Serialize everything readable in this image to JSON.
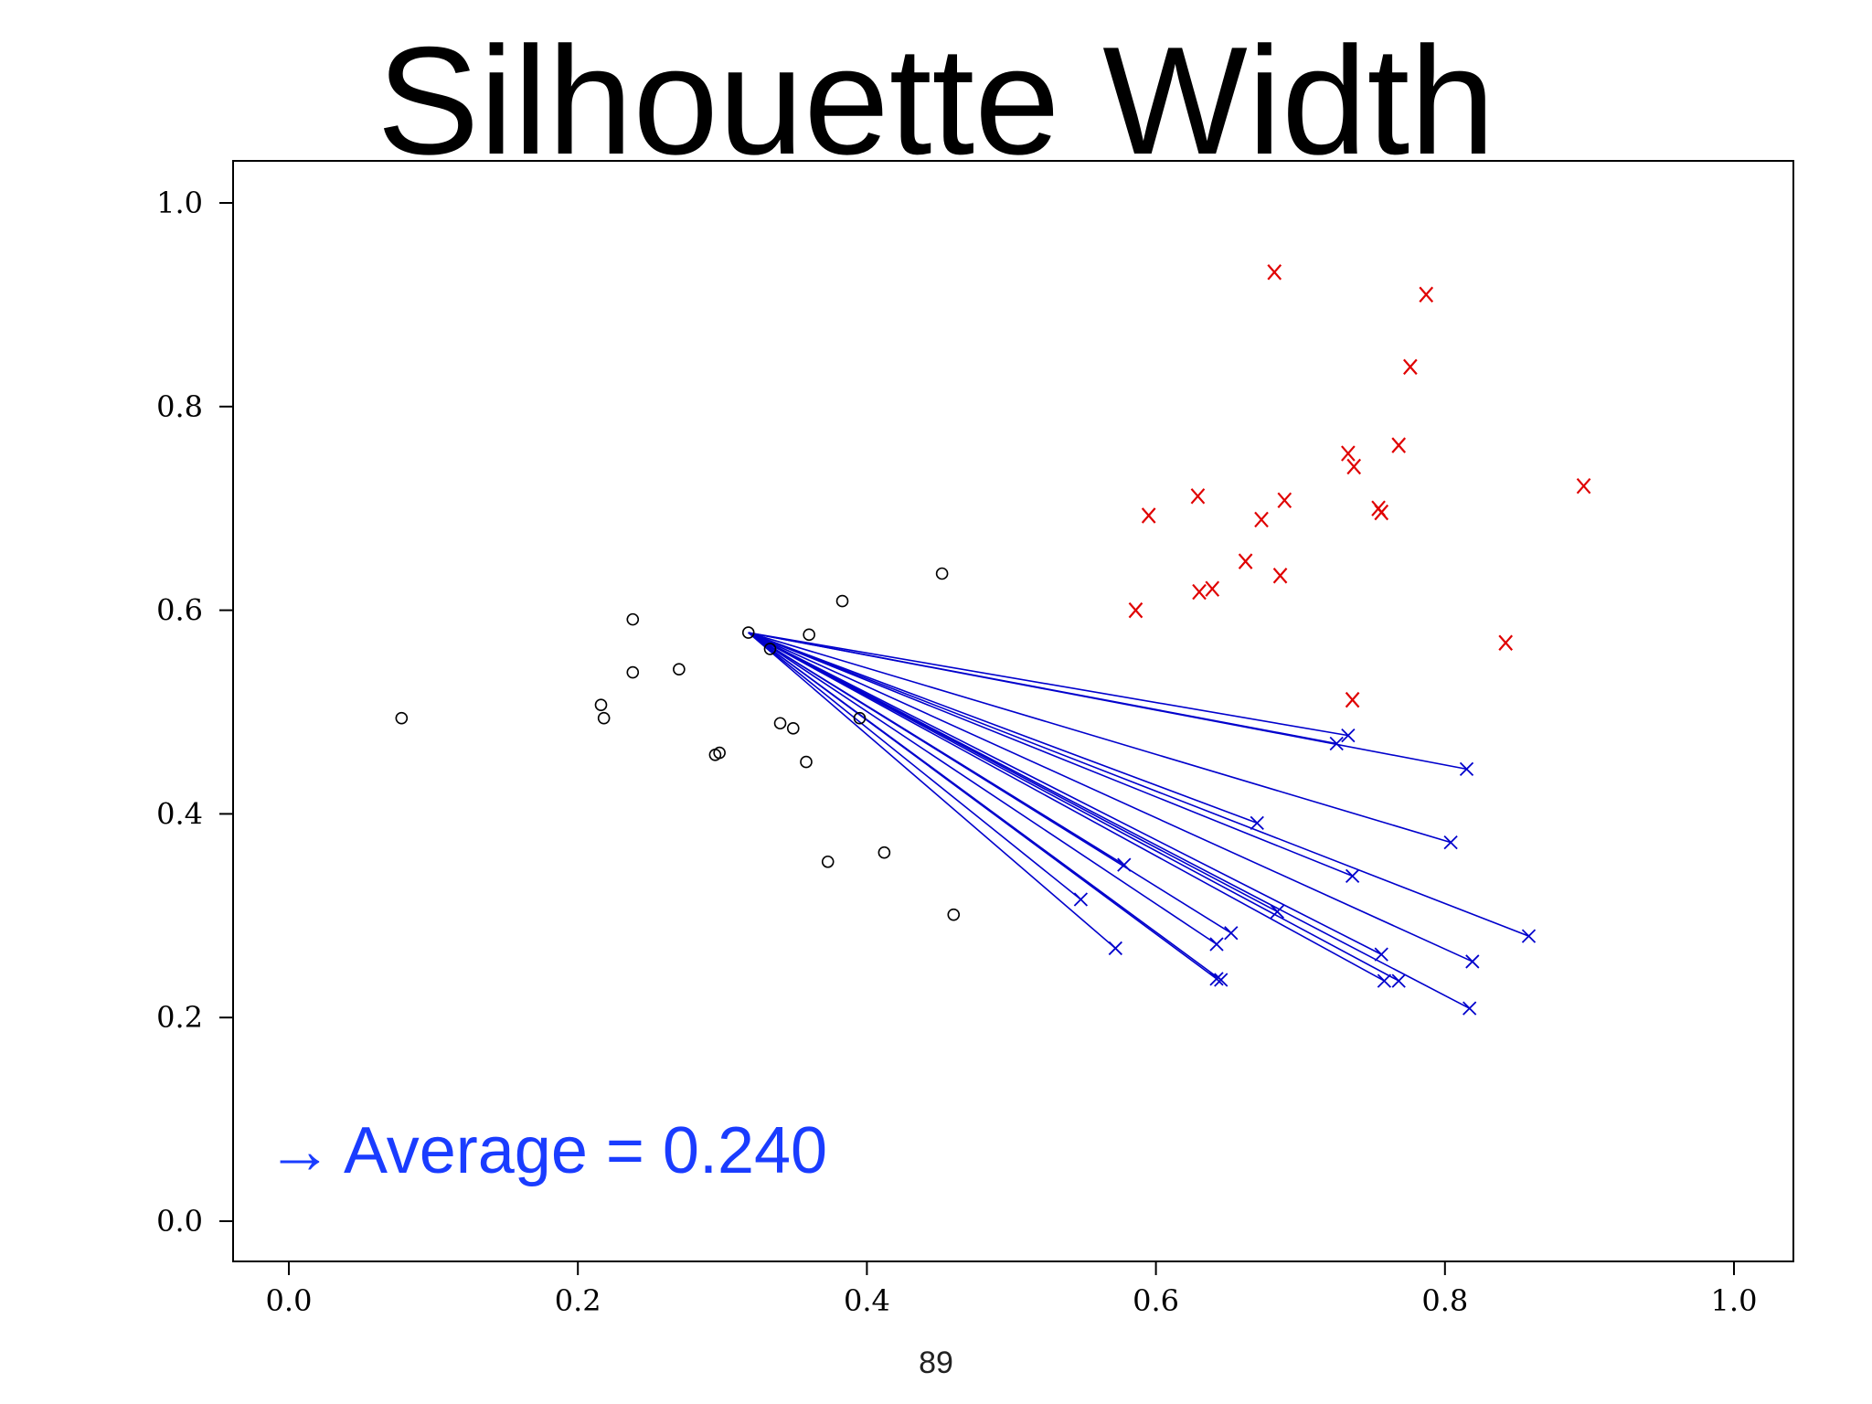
{
  "slide": {
    "title": "Silhouette Width",
    "page_number": "89"
  },
  "chart_data": {
    "type": "scatter",
    "title": "",
    "xlabel": "",
    "ylabel": "",
    "xlim": [
      0.0,
      1.0
    ],
    "ylim": [
      0.0,
      1.0
    ],
    "grid": false,
    "x_ticks": [
      "0.0",
      "0.2",
      "0.4",
      "0.6",
      "0.8",
      "1.0"
    ],
    "y_ticks": [
      "0.0",
      "0.2",
      "0.4",
      "0.6",
      "0.8",
      "1.0"
    ],
    "x_tick_values": [
      0.0,
      0.2,
      0.4,
      0.6,
      0.8,
      1.0
    ],
    "y_tick_values": [
      0.0,
      0.2,
      0.4,
      0.6,
      0.8,
      1.0
    ],
    "reference_point": {
      "x": 0.318,
      "y": 0.578
    },
    "annotation": {
      "arrow": "→",
      "text": "Average = 0.240",
      "color": "#1a3cff"
    },
    "colors": {
      "circles": "#000000",
      "red_x": "#e00000",
      "blue_x": "#0000cc",
      "lines": "#0000cc"
    },
    "series": [
      {
        "marker": "circle",
        "color": "#000000",
        "points": [
          [
            0.078,
            0.494
          ],
          [
            0.216,
            0.507
          ],
          [
            0.218,
            0.494
          ],
          [
            0.238,
            0.591
          ],
          [
            0.238,
            0.539
          ],
          [
            0.27,
            0.542
          ],
          [
            0.295,
            0.458
          ],
          [
            0.298,
            0.46
          ],
          [
            0.318,
            0.578
          ],
          [
            0.333,
            0.562
          ],
          [
            0.34,
            0.489
          ],
          [
            0.349,
            0.484
          ],
          [
            0.358,
            0.451
          ],
          [
            0.36,
            0.576
          ],
          [
            0.373,
            0.353
          ],
          [
            0.383,
            0.609
          ],
          [
            0.395,
            0.494
          ],
          [
            0.412,
            0.362
          ],
          [
            0.452,
            0.636
          ],
          [
            0.46,
            0.301
          ]
        ]
      },
      {
        "marker": "x-letter",
        "color": "#e00000",
        "points": [
          [
            0.682,
            0.932
          ],
          [
            0.787,
            0.91
          ],
          [
            0.776,
            0.839
          ],
          [
            0.733,
            0.754
          ],
          [
            0.768,
            0.762
          ],
          [
            0.737,
            0.741
          ],
          [
            0.896,
            0.722
          ],
          [
            0.629,
            0.712
          ],
          [
            0.689,
            0.708
          ],
          [
            0.595,
            0.693
          ],
          [
            0.673,
            0.689
          ],
          [
            0.754,
            0.7
          ],
          [
            0.756,
            0.696
          ],
          [
            0.662,
            0.648
          ],
          [
            0.686,
            0.634
          ],
          [
            0.63,
            0.618
          ],
          [
            0.639,
            0.621
          ],
          [
            0.586,
            0.6
          ],
          [
            0.842,
            0.568
          ],
          [
            0.736,
            0.512
          ]
        ]
      },
      {
        "marker": "x",
        "color": "#0000cc",
        "points": [
          [
            0.733,
            0.477
          ],
          [
            0.725,
            0.469
          ],
          [
            0.815,
            0.444
          ],
          [
            0.67,
            0.391
          ],
          [
            0.804,
            0.372
          ],
          [
            0.736,
            0.339
          ],
          [
            0.578,
            0.35
          ],
          [
            0.548,
            0.316
          ],
          [
            0.858,
            0.28
          ],
          [
            0.652,
            0.283
          ],
          [
            0.642,
            0.272
          ],
          [
            0.684,
            0.304
          ],
          [
            0.572,
            0.268
          ],
          [
            0.756,
            0.262
          ],
          [
            0.819,
            0.255
          ],
          [
            0.645,
            0.237
          ],
          [
            0.642,
            0.238
          ],
          [
            0.758,
            0.236
          ],
          [
            0.768,
            0.236
          ],
          [
            0.817,
            0.209
          ]
        ]
      }
    ]
  }
}
